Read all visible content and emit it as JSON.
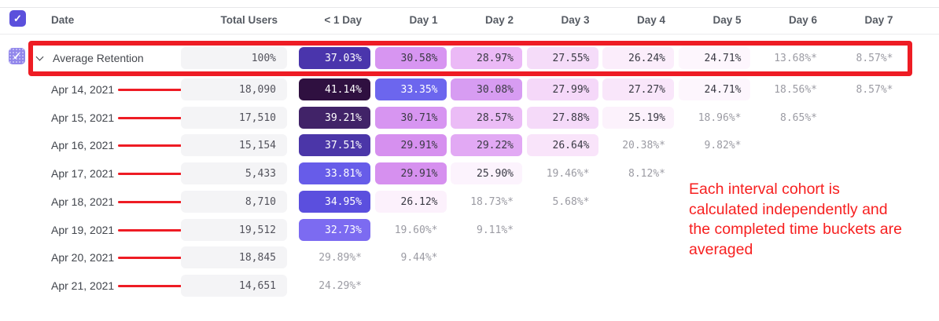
{
  "header": {
    "date_label": "Date",
    "total_users_label": "Total Users",
    "day_columns": [
      "< 1 Day",
      "Day 1",
      "Day 2",
      "Day 3",
      "Day 4",
      "Day 5",
      "Day 6",
      "Day 7"
    ]
  },
  "average_row": {
    "label": "Average Retention",
    "total": "100%",
    "cells": [
      {
        "v": "37.03%",
        "bg": "#4A35AC",
        "fg": "white"
      },
      {
        "v": "30.58%",
        "bg": "#D795F1",
        "fg": "dark"
      },
      {
        "v": "28.97%",
        "bg": "#EBB9F6",
        "fg": "dark"
      },
      {
        "v": "27.55%",
        "bg": "#F5DCF9",
        "fg": "dark"
      },
      {
        "v": "26.24%",
        "bg": "#FBEDFB",
        "fg": "dark"
      },
      {
        "v": "24.71%",
        "bg": "#FDF6FD",
        "fg": "dark"
      },
      {
        "v": "13.68%*",
        "bg": null,
        "fg": "gray"
      },
      {
        "v": "8.57%*",
        "bg": null,
        "fg": "gray"
      }
    ]
  },
  "rows": [
    {
      "date": "Apr 14, 2021",
      "total": "18,090",
      "cells": [
        {
          "v": "41.14%",
          "bg": "#2F1040",
          "fg": "white"
        },
        {
          "v": "33.35%",
          "bg": "#6C66EE",
          "fg": "white"
        },
        {
          "v": "30.08%",
          "bg": "#D79CF2",
          "fg": "dark"
        },
        {
          "v": "27.99%",
          "bg": "#F5D8F9",
          "fg": "dark"
        },
        {
          "v": "27.27%",
          "bg": "#F9E6FA",
          "fg": "dark"
        },
        {
          "v": "24.71%",
          "bg": "#FDF6FD",
          "fg": "dark"
        },
        {
          "v": "18.56%*",
          "bg": null,
          "fg": "gray"
        },
        {
          "v": "8.57%*",
          "bg": null,
          "fg": "gray"
        }
      ]
    },
    {
      "date": "Apr 15, 2021",
      "total": "17,510",
      "cells": [
        {
          "v": "39.21%",
          "bg": "#412368",
          "fg": "white"
        },
        {
          "v": "30.71%",
          "bg": "#D795F1",
          "fg": "dark"
        },
        {
          "v": "28.57%",
          "bg": "#EBBCF6",
          "fg": "dark"
        },
        {
          "v": "27.88%",
          "bg": "#F5DAF9",
          "fg": "dark"
        },
        {
          "v": "25.19%",
          "bg": "#FCF2FC",
          "fg": "dark"
        },
        {
          "v": "18.96%*",
          "bg": null,
          "fg": "gray"
        },
        {
          "v": "8.65%*",
          "bg": null,
          "fg": "gray"
        }
      ]
    },
    {
      "date": "Apr 16, 2021",
      "total": "15,154",
      "cells": [
        {
          "v": "37.51%",
          "bg": "#4B36A8",
          "fg": "white"
        },
        {
          "v": "29.91%",
          "bg": "#D690EF",
          "fg": "dark"
        },
        {
          "v": "29.22%",
          "bg": "#E2A9F4",
          "fg": "dark"
        },
        {
          "v": "26.64%",
          "bg": "#F9E4FA",
          "fg": "dark"
        },
        {
          "v": "20.38%*",
          "bg": null,
          "fg": "gray"
        },
        {
          "v": "9.82%*",
          "bg": null,
          "fg": "gray"
        }
      ]
    },
    {
      "date": "Apr 17, 2021",
      "total": "5,433",
      "cells": [
        {
          "v": "33.81%",
          "bg": "#675CE9",
          "fg": "white"
        },
        {
          "v": "29.91%",
          "bg": "#D690EF",
          "fg": "dark"
        },
        {
          "v": "25.90%",
          "bg": "#FCF3FD",
          "fg": "dark"
        },
        {
          "v": "19.46%*",
          "bg": null,
          "fg": "gray"
        },
        {
          "v": "8.12%*",
          "bg": null,
          "fg": "gray"
        }
      ]
    },
    {
      "date": "Apr 18, 2021",
      "total": "8,710",
      "cells": [
        {
          "v": "34.95%",
          "bg": "#5B4FDE",
          "fg": "white"
        },
        {
          "v": "26.12%",
          "bg": "#FCF1FC",
          "fg": "dark"
        },
        {
          "v": "18.73%*",
          "bg": null,
          "fg": "gray"
        },
        {
          "v": "5.68%*",
          "bg": null,
          "fg": "gray"
        }
      ]
    },
    {
      "date": "Apr 19, 2021",
      "total": "19,512",
      "cells": [
        {
          "v": "32.73%",
          "bg": "#7C6BF1",
          "fg": "white"
        },
        {
          "v": "19.60%*",
          "bg": null,
          "fg": "gray"
        },
        {
          "v": "9.11%*",
          "bg": null,
          "fg": "gray"
        }
      ]
    },
    {
      "date": "Apr 20, 2021",
      "total": "18,845",
      "cells": [
        {
          "v": "29.89%*",
          "bg": null,
          "fg": "gray"
        },
        {
          "v": "9.44%*",
          "bg": null,
          "fg": "gray"
        }
      ]
    },
    {
      "date": "Apr 21, 2021",
      "total": "14,651",
      "cells": [
        {
          "v": "24.29%*",
          "bg": null,
          "fg": "gray"
        }
      ]
    }
  ],
  "annotation": {
    "lines": [
      "Each interval cohort is",
      "calculated independently and",
      "the completed time buckets are",
      "averaged"
    ]
  },
  "icons": {
    "check": "✓"
  },
  "colors": {
    "checkbox_purple": "#5B50DC",
    "checkbox_purple_light": "#9186EB",
    "red": "#EE1C24",
    "text_red": "#F71F1F",
    "total_cell_bg": "#F4F4F6",
    "cell_text_dark": "#3A3A44",
    "cell_text_gray": "#9B9BA3",
    "cell_text_white": "#FFFFFF"
  }
}
